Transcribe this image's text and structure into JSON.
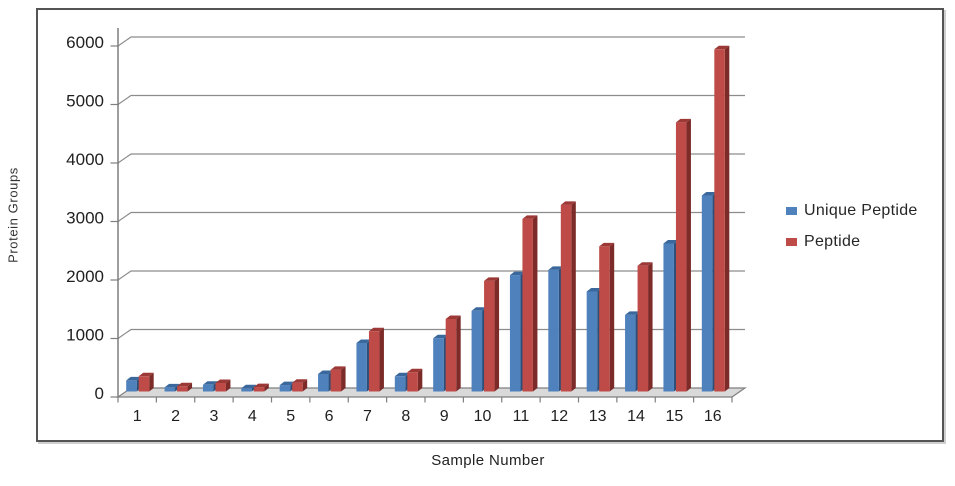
{
  "chart_data": {
    "type": "bar",
    "xlabel": "Sample Number",
    "ylabel": "Protein Groups",
    "categories": [
      "1",
      "2",
      "3",
      "4",
      "5",
      "6",
      "7",
      "8",
      "9",
      "10",
      "11",
      "12",
      "13",
      "14",
      "15",
      "16"
    ],
    "series": [
      {
        "name": "Unique Peptide",
        "color": "#4F81BD",
        "color_top": "#3A689C",
        "color_side": "#2B4F79",
        "values": [
          190,
          70,
          115,
          55,
          110,
          300,
          830,
          260,
          910,
          1380,
          1990,
          2080,
          1710,
          1310,
          2530,
          3350
        ]
      },
      {
        "name": "Peptide",
        "color": "#BE4B47",
        "color_top": "#9C3835",
        "color_side": "#7C2B29",
        "values": [
          260,
          90,
          145,
          75,
          150,
          370,
          1030,
          330,
          1240,
          1890,
          2950,
          3190,
          2480,
          2150,
          4600,
          5850
        ]
      }
    ],
    "ylim": [
      0,
      6000
    ],
    "y_ticks": [
      "0",
      "1000",
      "2000",
      "3000",
      "4000",
      "5000",
      "6000"
    ],
    "y_tick_step": 1000,
    "grid": true,
    "style_3d": true,
    "legend_position": "right"
  },
  "colors": {
    "gridline": "#8C8C8C",
    "axis": "#7F7F7F",
    "floor_fill": "#D9D9D9",
    "tick_label": "#1F1F1F",
    "frame_border": "#545454"
  }
}
